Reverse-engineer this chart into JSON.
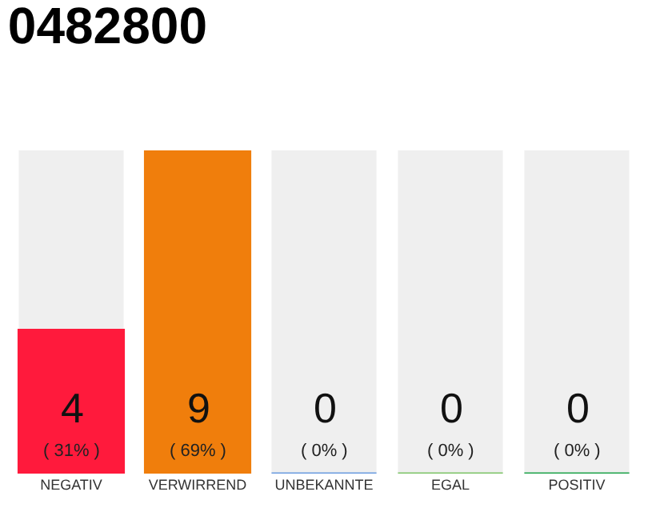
{
  "chart_data": {
    "type": "bar",
    "title": "0482800",
    "categories": [
      "NEGATIV",
      "VERWIRREND",
      "UNBEKANNTE",
      "EGAL",
      "POSITIV"
    ],
    "values": [
      4,
      9,
      0,
      0,
      0
    ],
    "colors": [
      "#ff1a3c",
      "#f07e0c",
      "#6a9be0",
      "#7dc467",
      "#1ea34a"
    ],
    "data_labels": true,
    "annotations": [
      {
        "text": "( 31% )",
        "x": "NEGATIV",
        "y": 0
      },
      {
        "text": "( 69% )",
        "x": "VERWIRREND",
        "y": 0
      },
      {
        "text": "( 0% )",
        "x": "UNBEKANNTE",
        "y": 0
      },
      {
        "text": "( 0% )",
        "x": "EGAL",
        "y": 0
      },
      {
        "text": "( 0% )",
        "x": "POSITIV",
        "y": 0
      }
    ]
  }
}
